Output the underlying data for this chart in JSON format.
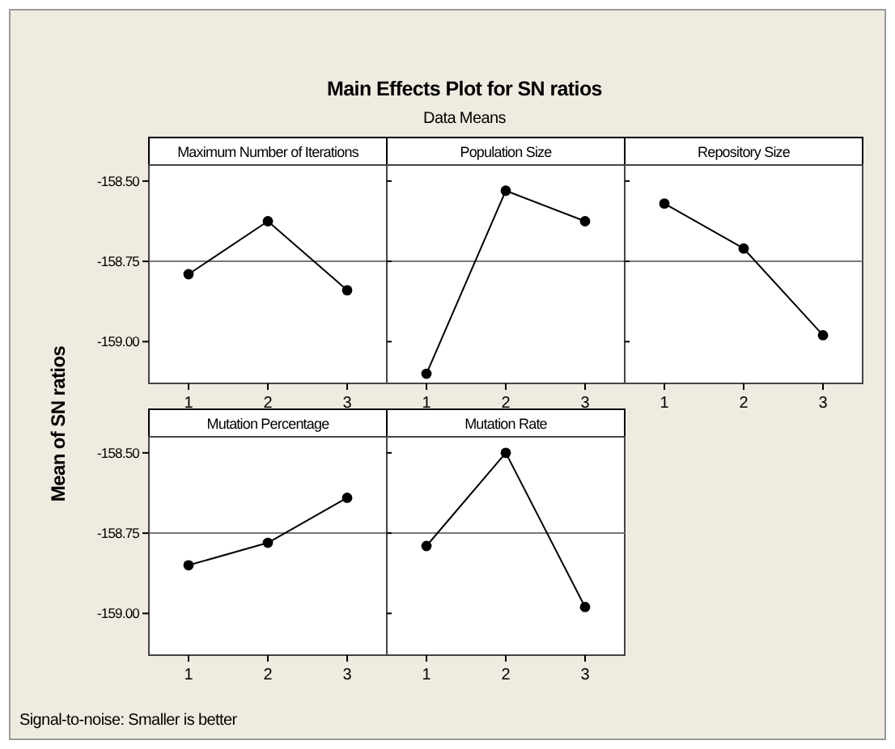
{
  "chart_data": [
    {
      "type": "line",
      "title": "Maximum Number of Iterations",
      "categories": [
        "1",
        "2",
        "3"
      ],
      "series": [
        {
          "color": "#000000",
          "values": [
            -158.79,
            -158.625,
            -158.84
          ]
        }
      ],
      "ylim": [
        -159.13,
        -158.45
      ],
      "yticks": [
        {
          "value": -158.5,
          "label": "-158.50"
        },
        {
          "value": -158.75,
          "label": "-158.75"
        },
        {
          "value": -159,
          "label": "-159.00"
        }
      ],
      "marker": "circle",
      "ref_lines": [
        {
          "axis": "y",
          "value": -158.75
        }
      ],
      "grid": false,
      "annotations": [
        "Main Effects Plot for SN ratios",
        "Data Means",
        "Mean of SN ratios",
        "Signal-to-noise: Smaller is better"
      ]
    },
    {
      "type": "line",
      "title": "Population Size",
      "categories": [
        "1",
        "2",
        "3"
      ],
      "series": [
        {
          "color": "#000000",
          "values": [
            -159.1,
            -158.53,
            -158.625
          ]
        }
      ],
      "ylim": [
        -159.13,
        -158.45
      ],
      "yticks": [
        {
          "value": -158.5,
          "label": null
        },
        {
          "value": -158.75,
          "label": null
        },
        {
          "value": -159,
          "label": null
        }
      ],
      "marker": "circle",
      "ref_lines": [
        {
          "axis": "y",
          "value": -158.75
        }
      ],
      "grid": false,
      "tick_labels": "x"
    },
    {
      "type": "line",
      "title": "Repository Size",
      "categories": [
        "1",
        "2",
        "3"
      ],
      "series": [
        {
          "color": "#000000",
          "values": [
            -158.57,
            -158.71,
            -158.98
          ]
        }
      ],
      "ylim": [
        -159.13,
        -158.45
      ],
      "yticks": [
        {
          "value": -158.5,
          "label": null
        },
        {
          "value": -158.75,
          "label": null
        },
        {
          "value": -159,
          "label": null
        }
      ],
      "marker": "circle",
      "ref_lines": [
        {
          "axis": "y",
          "value": -158.75
        }
      ],
      "grid": false,
      "tick_labels": "x"
    },
    {
      "type": "line",
      "title": "Mutation Percentage",
      "categories": [
        "1",
        "2",
        "3"
      ],
      "series": [
        {
          "color": "#000000",
          "values": [
            -158.85,
            -158.78,
            -158.64
          ]
        }
      ],
      "ylim": [
        -159.13,
        -158.45
      ],
      "yticks": [
        {
          "value": -158.5,
          "label": "-158.50"
        },
        {
          "value": -158.75,
          "label": "-158.75"
        },
        {
          "value": -159,
          "label": "-159.00"
        }
      ],
      "marker": "circle",
      "ref_lines": [
        {
          "axis": "y",
          "value": -158.75
        }
      ],
      "grid": false
    },
    {
      "type": "line",
      "title": "Mutation Rate",
      "categories": [
        "1",
        "2",
        "3"
      ],
      "series": [
        {
          "color": "#000000",
          "values": [
            -158.79,
            -158.5,
            -158.98
          ]
        }
      ],
      "ylim": [
        -159.13,
        -158.45
      ],
      "yticks": [
        {
          "value": -158.5,
          "label": null
        },
        {
          "value": -158.75,
          "label": null
        },
        {
          "value": -159,
          "label": null
        }
      ],
      "marker": "circle",
      "ref_lines": [
        {
          "axis": "y",
          "value": -158.75
        }
      ],
      "grid": false,
      "tick_labels": "x"
    }
  ]
}
